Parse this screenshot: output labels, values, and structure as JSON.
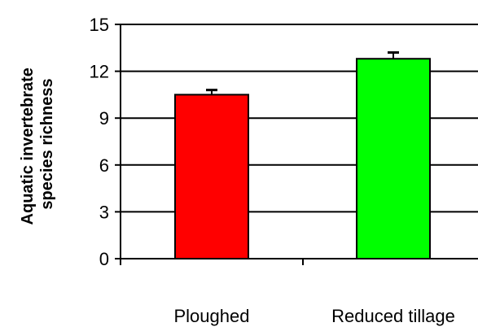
{
  "chart_data": {
    "type": "bar",
    "title": "",
    "xlabel": "",
    "ylabel_lines": [
      "Aquatic invertebrate",
      "species richness"
    ],
    "categories": [
      "Ploughed",
      "Reduced tillage"
    ],
    "values": [
      10.5,
      12.8
    ],
    "errors": [
      0.3,
      0.4
    ],
    "bar_colors": [
      "#ff0000",
      "#00ff00"
    ],
    "ylim": [
      0,
      15
    ],
    "yticks": [
      "0",
      "3",
      "6",
      "9",
      "12",
      "15"
    ],
    "ytick_values": [
      0,
      3,
      6,
      9,
      12,
      15
    ],
    "grid": "horizontal",
    "legend": "none"
  }
}
